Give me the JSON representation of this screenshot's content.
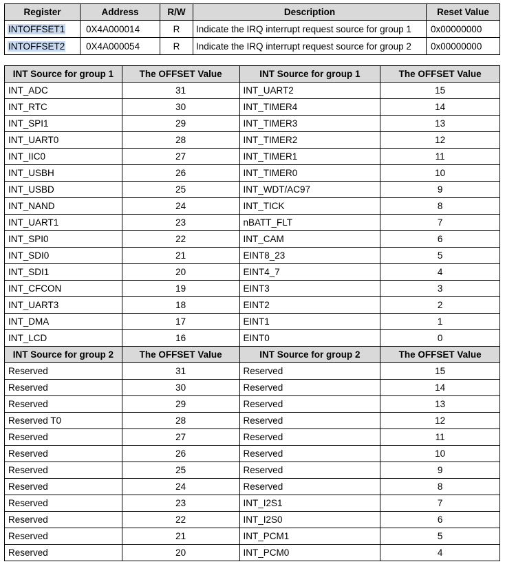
{
  "register_table": {
    "headers": [
      "Register",
      "Address",
      "R/W",
      "Description",
      "Reset Value"
    ],
    "rows": [
      [
        "INTOFFSET1",
        "0X4A000014",
        "R",
        "Indicate the IRQ interrupt request source for group 1",
        "0x00000000"
      ],
      [
        "INTOFFSET2",
        "0X4A000054",
        "R",
        "Indicate the IRQ interrupt request source for group 2",
        "0x00000000"
      ]
    ]
  },
  "offset_table": {
    "sections": [
      {
        "headers": [
          "INT Source for group 1",
          "The OFFSET Value",
          "INT Source for group 1",
          "The OFFSET Value"
        ],
        "rows": [
          [
            "INT_ADC",
            "31",
            "INT_UART2",
            "15"
          ],
          [
            "INT_RTC",
            "30",
            "INT_TIMER4",
            "14"
          ],
          [
            "INT_SPI1",
            "29",
            "INT_TIMER3",
            "13"
          ],
          [
            "INT_UART0",
            "28",
            "INT_TIMER2",
            "12"
          ],
          [
            "INT_IIC0",
            "27",
            "INT_TIMER1",
            "11"
          ],
          [
            "INT_USBH",
            "26",
            "INT_TIMER0",
            "10"
          ],
          [
            "INT_USBD",
            "25",
            "INT_WDT/AC97",
            "9"
          ],
          [
            "INT_NAND",
            "24",
            "INT_TICK",
            "8"
          ],
          [
            "INT_UART1",
            "23",
            "nBATT_FLT",
            "7"
          ],
          [
            "INT_SPI0",
            "22",
            "INT_CAM",
            "6"
          ],
          [
            "INT_SDI0",
            "21",
            "EINT8_23",
            "5"
          ],
          [
            "INT_SDI1",
            "20",
            "EINT4_7",
            "4"
          ],
          [
            "INT_CFCON",
            "19",
            "EINT3",
            "3"
          ],
          [
            "INT_UART3",
            "18",
            "EINT2",
            "2"
          ],
          [
            "INT_DMA",
            "17",
            "EINT1",
            "1"
          ],
          [
            "INT_LCD",
            "16",
            "EINT0",
            "0"
          ]
        ]
      },
      {
        "headers": [
          "INT Source for group 2",
          "The OFFSET Value",
          "INT Source for group 2",
          "The OFFSET Value"
        ],
        "rows": [
          [
            "Reserved",
            "31",
            "Reserved",
            "15"
          ],
          [
            "Reserved",
            "30",
            "Reserved",
            "14"
          ],
          [
            "Reserved",
            "29",
            "Reserved",
            "13"
          ],
          [
            "Reserved T0",
            "28",
            "Reserved",
            "12"
          ],
          [
            "Reserved",
            "27",
            "Reserved",
            "11"
          ],
          [
            "Reserved",
            "26",
            "Reserved",
            "10"
          ],
          [
            "Reserved",
            "25",
            "Reserved",
            "9"
          ],
          [
            "Reserved",
            "24",
            "Reserved",
            "8"
          ],
          [
            "Reserved",
            "23",
            "INT_I2S1",
            "7"
          ],
          [
            "Reserved",
            "22",
            "INT_I2S0",
            "6"
          ],
          [
            "Reserved",
            "21",
            "INT_PCM1",
            "5"
          ],
          [
            "Reserved",
            "20",
            "INT_PCM0",
            "4"
          ]
        ]
      }
    ]
  }
}
